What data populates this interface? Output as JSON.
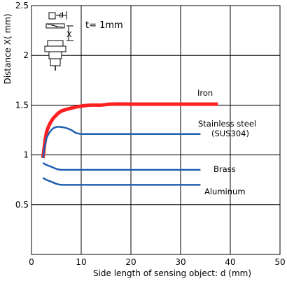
{
  "chart_data": {
    "type": "line",
    "xlabel": "Side length of sensing object: d (mm)",
    "ylabel": "Distance X( mm)",
    "xlim": [
      0,
      50
    ],
    "ylim": [
      0,
      2.5
    ],
    "x_ticks": [
      "0",
      "10",
      "20",
      "30",
      "40",
      "50"
    ],
    "y_ticks": [
      "0.5",
      "1",
      "1.5",
      "2",
      "2.5"
    ],
    "grid": true,
    "annotation": "t= 1mm",
    "inset_label": "d",
    "inset_axis_label": "X",
    "series": [
      {
        "name": "Iron",
        "color": "#ff2020",
        "x": [
          2.3,
          3,
          4,
          5,
          6,
          8,
          10,
          12,
          14,
          16,
          20,
          25,
          30,
          35,
          37.5
        ],
        "y": [
          0.97,
          1.22,
          1.34,
          1.4,
          1.44,
          1.47,
          1.49,
          1.5,
          1.5,
          1.51,
          1.51,
          1.51,
          1.51,
          1.51,
          1.51
        ]
      },
      {
        "name": "Stainless steel",
        "name2": "(SUS304)",
        "color": "#2060b0",
        "x": [
          2.3,
          3,
          4,
          5,
          6,
          7,
          8,
          9,
          10,
          12,
          15,
          20,
          25,
          30,
          34
        ],
        "y": [
          0.97,
          1.16,
          1.25,
          1.28,
          1.28,
          1.27,
          1.25,
          1.22,
          1.21,
          1.21,
          1.21,
          1.21,
          1.21,
          1.21,
          1.21
        ]
      },
      {
        "name": "Brass",
        "color": "#2060b0",
        "x": [
          2.3,
          3,
          4,
          5,
          6,
          8,
          10,
          15,
          20,
          25,
          30,
          34
        ],
        "y": [
          0.92,
          0.9,
          0.88,
          0.86,
          0.85,
          0.85,
          0.85,
          0.85,
          0.85,
          0.85,
          0.85,
          0.85
        ]
      },
      {
        "name": "Aluminum",
        "color": "#2060b0",
        "x": [
          2.3,
          3,
          4,
          5,
          6,
          8,
          10,
          15,
          20,
          25,
          30,
          34
        ],
        "y": [
          0.77,
          0.75,
          0.73,
          0.71,
          0.7,
          0.7,
          0.7,
          0.7,
          0.7,
          0.7,
          0.7,
          0.7
        ]
      }
    ]
  }
}
